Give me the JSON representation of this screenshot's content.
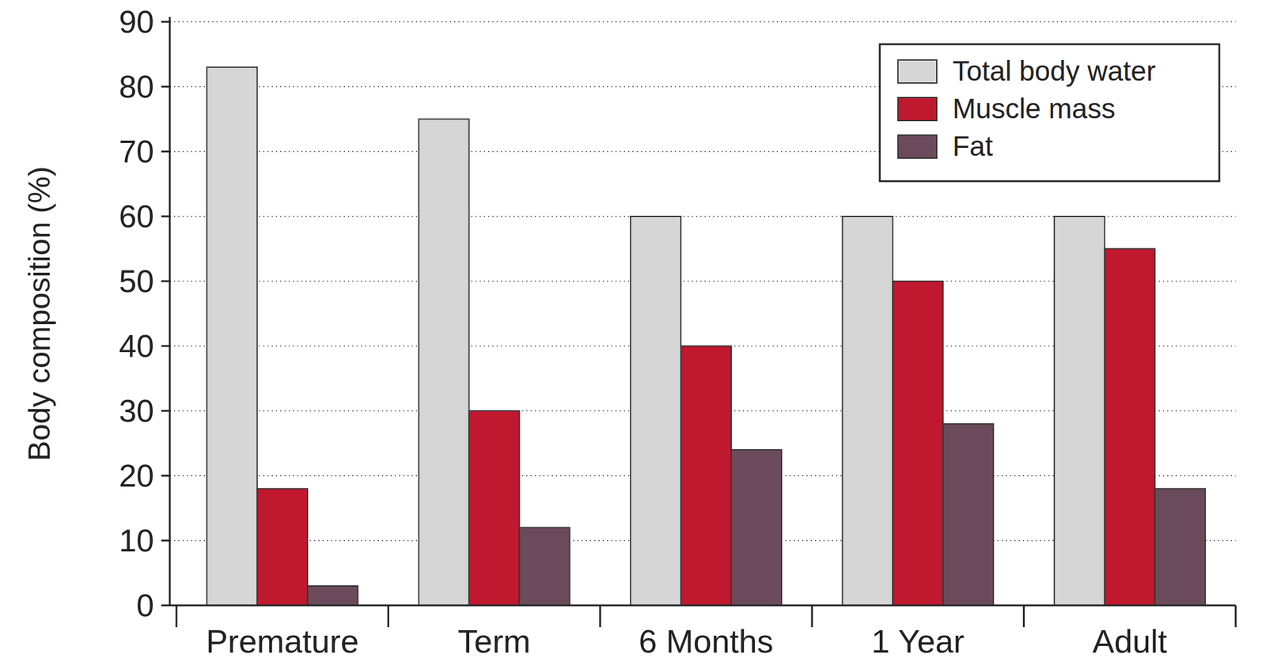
{
  "chart_data": {
    "type": "bar",
    "y_label": "Body composition (%)",
    "categories": [
      "Premature",
      "Term",
      "6 Months",
      "1 Year",
      "Adult"
    ],
    "series": [
      {
        "name": "Total body water",
        "color": "#d6d6d6",
        "values": [
          83,
          75,
          60,
          60,
          60
        ]
      },
      {
        "name": "Muscle mass",
        "color": "#c0182f",
        "values": [
          18,
          30,
          40,
          50,
          55
        ]
      },
      {
        "name": "Fat",
        "color": "#6b4b5b",
        "values": [
          3,
          12,
          24,
          28,
          18
        ]
      }
    ],
    "ylim": [
      0,
      90
    ],
    "yticks": [
      0,
      10,
      20,
      30,
      40,
      50,
      60,
      70,
      80,
      90
    ],
    "grid": true,
    "legend": "top-right"
  }
}
